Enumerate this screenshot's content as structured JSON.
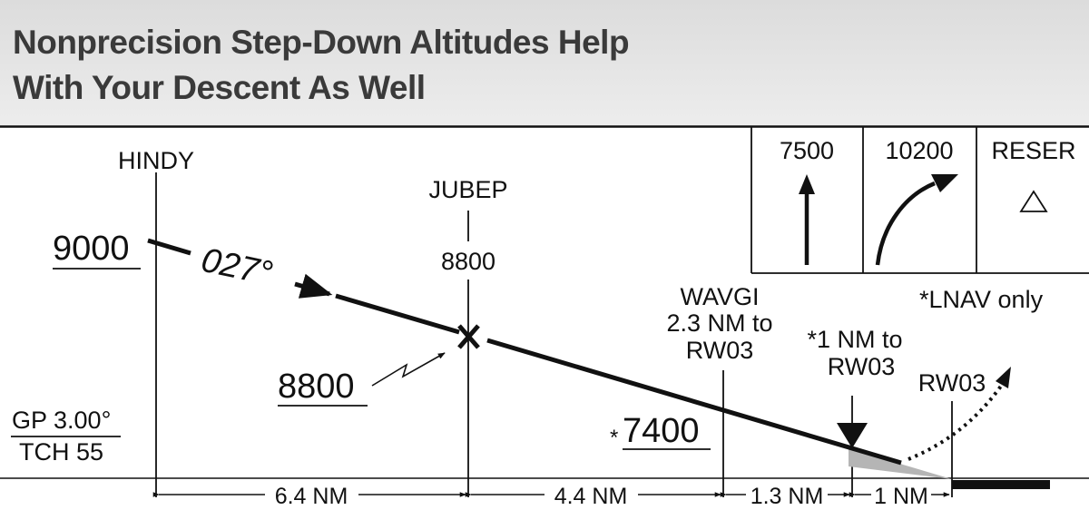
{
  "title": {
    "line1": "Nonprecision Step-Down Altitudes Help",
    "line2": "With Your Descent As Well"
  },
  "fixes": {
    "hindy": "HINDY",
    "jubep": "JUBEP",
    "jubep_altitude": "8800",
    "wavgi_line1": "WAVGI",
    "wavgi_line2": "2.3 NM to",
    "wavgi_line3": "RW03",
    "one_nm_line1": "*1 NM to",
    "one_nm_line2": "RW03",
    "runway": "RW03"
  },
  "altitudes": {
    "initial": "9000",
    "course": "027°",
    "jubep_crossing": "8800",
    "mda_asterisk": "*",
    "mda": "7400"
  },
  "glidepath": {
    "gp": "GP 3.00°",
    "tch": "TCH 55"
  },
  "distances": [
    "6.4 NM",
    "4.4 NM",
    "1.3 NM",
    "1 NM"
  ],
  "missed_approach_box": {
    "climb_to": "7500",
    "then_climb": "10200",
    "fix": "RESER",
    "note": "*LNAV only"
  },
  "colors": {
    "line": "#111111",
    "title": "#3a3a3a",
    "cone": "#b5b5b5"
  }
}
